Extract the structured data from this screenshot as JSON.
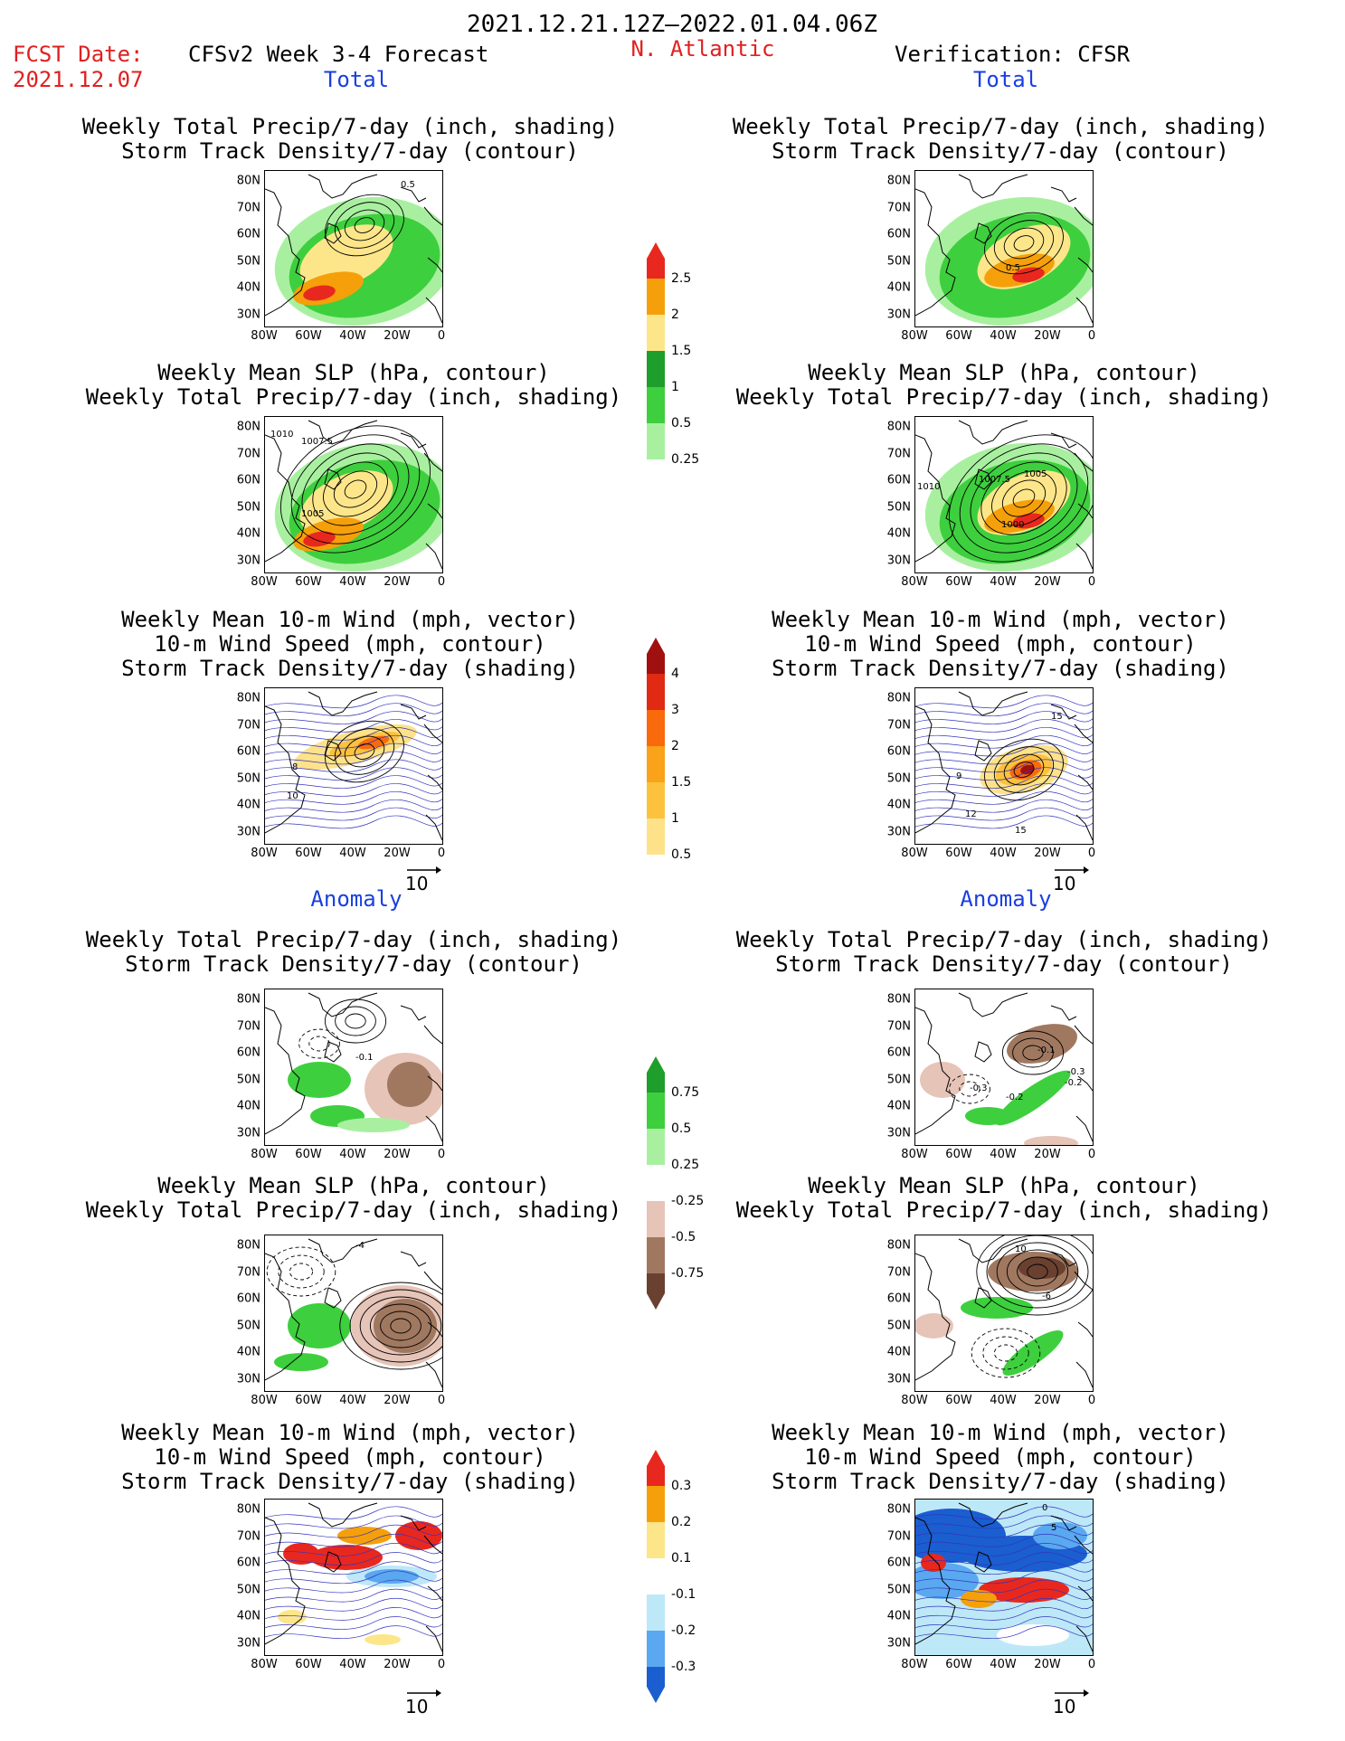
{
  "header": {
    "title": "2021.12.21.12Z–2022.01.04.06Z",
    "fcst_label": "FCST Date:",
    "fcst_date": "2021.12.07",
    "model": "CFSv2 Week 3-4 Forecast",
    "region": "N. Atlantic",
    "verification": "Verification: CFSR"
  },
  "sections": {
    "total": "Total",
    "anomaly": "Anomaly"
  },
  "panel_titles": {
    "precip_track": [
      "Weekly Total Precip/7-day (inch, shading)",
      "Storm Track Density/7-day (contour)"
    ],
    "slp_precip": [
      "Weekly Mean SLP (hPa, contour)",
      "Weekly Total Precip/7-day (inch, shading)"
    ],
    "wind_track": [
      "Weekly Mean 10-m Wind (mph, vector)",
      "10-m Wind Speed (mph, contour)",
      "Storm Track Density/7-day (shading)"
    ]
  },
  "axes": {
    "lat_ticks": [
      "80N",
      "70N",
      "60N",
      "50N",
      "40N",
      "30N"
    ],
    "lon_ticks": [
      "80W",
      "60W",
      "40W",
      "20W",
      "0"
    ]
  },
  "vector_ref": "10",
  "contour_labels": {
    "r1_left": [
      "0.5"
    ],
    "r1_right": [
      "0.5"
    ],
    "r2_left": [
      "1010",
      "1007.5",
      "1005"
    ],
    "r2_right": [
      "1007.5",
      "1005",
      "1000",
      "1010"
    ],
    "r3_left": [
      "8",
      "10"
    ],
    "r3_right": [
      "15",
      "12",
      "15",
      "9"
    ],
    "r4_left": [
      "-0.1"
    ],
    "r4_right": [
      "-0.1",
      "-0.3",
      "-0.2",
      "-0.2",
      "-0.3"
    ],
    "r5_left": [
      "-4"
    ],
    "r5_right": [
      "10",
      "-6"
    ],
    "r6_right": [
      "0",
      "5"
    ]
  },
  "colorbars": [
    {
      "name": "total-precip",
      "labels": [
        "2.5",
        "2",
        "1.5",
        "1",
        "0.5",
        "0.25"
      ],
      "colors": [
        "#e8281e",
        "#f5a00a",
        "#fde68a",
        "#1e9e2a",
        "#3ecf3e",
        "#a8f0a0",
        "#ffffff"
      ]
    },
    {
      "name": "total-track",
      "labels": [
        "4",
        "3",
        "2",
        "1.5",
        "1",
        "0.5"
      ],
      "colors": [
        "#a01010",
        "#e02a14",
        "#f86a0c",
        "#f9a21a",
        "#fcc23e",
        "#fde28a",
        "#ffffff"
      ]
    },
    {
      "name": "anom-precip",
      "labels": [
        "0.75",
        "0.5",
        "0.25",
        "-0.25",
        "-0.5",
        "-0.75"
      ],
      "colors": [
        "#1e9e2a",
        "#3ecf3e",
        "#a8f0a0",
        "#ffffff",
        "#e6c4b8",
        "#a07860",
        "#6a4030"
      ]
    },
    {
      "name": "anom-track",
      "labels": [
        "0.3",
        "0.2",
        "0.1",
        "-0.1",
        "-0.2",
        "-0.3"
      ],
      "colors": [
        "#e8281e",
        "#f5a00a",
        "#fde68a",
        "#ffffff",
        "#bde8f8",
        "#5aa8f0",
        "#1a5ed0"
      ]
    }
  ],
  "chart_data": [
    {
      "type": "heatmap",
      "panel": "total-forecast-precip-track",
      "field": "Weekly Total Precip/7-day (inch)",
      "lon_range": [
        -80,
        0
      ],
      "lat_range": [
        25,
        85
      ]
    },
    {
      "type": "heatmap",
      "panel": "total-verification-precip-track",
      "field": "Weekly Total Precip/7-day (inch)",
      "lon_range": [
        -80,
        0
      ],
      "lat_range": [
        25,
        85
      ]
    },
    {
      "type": "heatmap",
      "panel": "total-forecast-slp-precip",
      "field": "Weekly Mean SLP (hPa)",
      "lon_range": [
        -80,
        0
      ],
      "lat_range": [
        25,
        85
      ]
    },
    {
      "type": "heatmap",
      "panel": "total-verification-slp-precip",
      "field": "Weekly Mean SLP (hPa)",
      "lon_range": [
        -80,
        0
      ],
      "lat_range": [
        25,
        85
      ]
    },
    {
      "type": "heatmap",
      "panel": "total-forecast-wind-track",
      "field": "Storm Track Density/7-day",
      "lon_range": [
        -80,
        0
      ],
      "lat_range": [
        25,
        85
      ]
    },
    {
      "type": "heatmap",
      "panel": "total-verification-wind-track",
      "field": "Storm Track Density/7-day",
      "lon_range": [
        -80,
        0
      ],
      "lat_range": [
        25,
        85
      ]
    },
    {
      "type": "heatmap",
      "panel": "anomaly-forecast-precip-track",
      "field": "Weekly Total Precip/7-day (inch)",
      "lon_range": [
        -80,
        0
      ],
      "lat_range": [
        25,
        85
      ]
    },
    {
      "type": "heatmap",
      "panel": "anomaly-verification-precip-track",
      "field": "Weekly Total Precip/7-day (inch)",
      "lon_range": [
        -80,
        0
      ],
      "lat_range": [
        25,
        85
      ]
    },
    {
      "type": "heatmap",
      "panel": "anomaly-forecast-slp-precip",
      "field": "Weekly Mean SLP (hPa)",
      "lon_range": [
        -80,
        0
      ],
      "lat_range": [
        25,
        85
      ]
    },
    {
      "type": "heatmap",
      "panel": "anomaly-verification-slp-precip",
      "field": "Weekly Mean SLP (hPa)",
      "lon_range": [
        -80,
        0
      ],
      "lat_range": [
        25,
        85
      ]
    },
    {
      "type": "heatmap",
      "panel": "anomaly-forecast-wind-track",
      "field": "Storm Track Density/7-day",
      "lon_range": [
        -80,
        0
      ],
      "lat_range": [
        25,
        85
      ]
    },
    {
      "type": "heatmap",
      "panel": "anomaly-verification-wind-track",
      "field": "Storm Track Density/7-day",
      "lon_range": [
        -80,
        0
      ],
      "lat_range": [
        25,
        85
      ]
    }
  ]
}
